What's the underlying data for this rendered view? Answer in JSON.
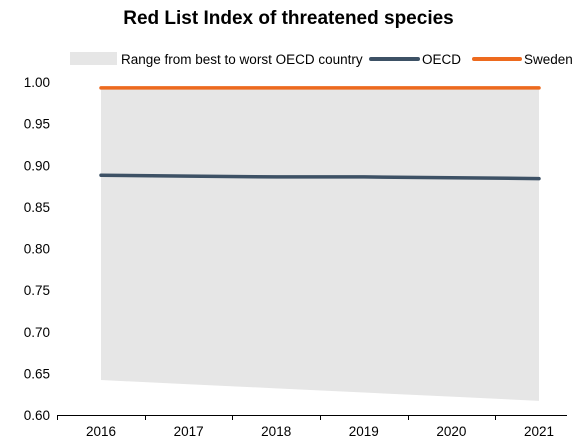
{
  "chart_data": {
    "type": "line",
    "title": "Red List Index of threatened species",
    "xlabel": "",
    "ylabel": "",
    "x": [
      "2016",
      "2017",
      "2018",
      "2019",
      "2020",
      "2021"
    ],
    "ylim": [
      0.6,
      1.0
    ],
    "yticks": [
      "1.00",
      "0.95",
      "0.90",
      "0.85",
      "0.80",
      "0.75",
      "0.70",
      "0.65",
      "0.60"
    ],
    "grid": false,
    "legend_position": "top",
    "range": {
      "name": "Range from best to worst OECD country",
      "upper": [
        0.993,
        0.993,
        0.993,
        0.993,
        0.993,
        0.993
      ],
      "lower": [
        0.642,
        0.637,
        0.632,
        0.627,
        0.622,
        0.617
      ],
      "color": "#e6e6e6"
    },
    "series": [
      {
        "name": "OECD",
        "values": [
          0.888,
          0.887,
          0.886,
          0.886,
          0.885,
          0.884
        ],
        "color": "#3d5165"
      },
      {
        "name": "Sweden",
        "values": [
          0.993,
          0.993,
          0.993,
          0.993,
          0.993,
          0.993
        ],
        "color": "#ed6a1e"
      }
    ]
  }
}
